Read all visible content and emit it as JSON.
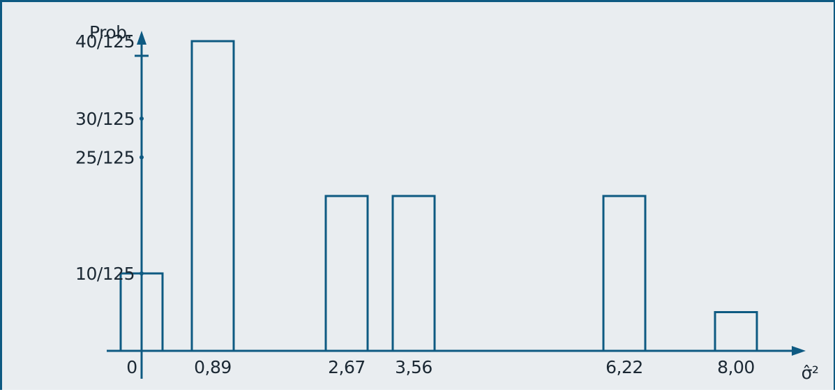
{
  "chart_data": {
    "type": "bar",
    "title": "",
    "ylabel": "Prob.",
    "xlabel": "σ̂²",
    "y_tick_labels": [
      "10/125",
      "25/125",
      "30/125",
      "40/125"
    ],
    "x_tick_labels": [
      "0",
      "0,89",
      "2,67",
      "3,56",
      "6,22",
      "8,00"
    ],
    "categories": [
      "0",
      "0,89",
      "2,67",
      "3,56",
      "6,22",
      "8,00"
    ],
    "x": [
      0,
      0.89,
      2.67,
      3.56,
      6.22,
      8.0
    ],
    "values": [
      10,
      40,
      20,
      20,
      20,
      5
    ],
    "value_denominator": 125,
    "ylim": [
      0,
      50
    ],
    "xlim": [
      -0.5,
      9
    ],
    "grid": false,
    "legend": "none"
  },
  "colors": {
    "frame": "#0e5a82",
    "bar_stroke": "#0e5a82",
    "axis": "#0e5a82",
    "background": "#e9edf0"
  }
}
